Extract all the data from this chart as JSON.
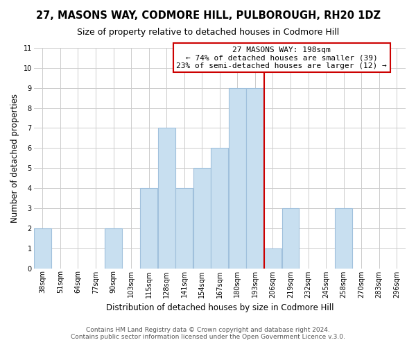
{
  "title": "27, MASONS WAY, CODMORE HILL, PULBOROUGH, RH20 1DZ",
  "subtitle": "Size of property relative to detached houses in Codmore Hill",
  "xlabel": "Distribution of detached houses by size in Codmore Hill",
  "ylabel": "Number of detached properties",
  "bin_labels": [
    "38sqm",
    "51sqm",
    "64sqm",
    "77sqm",
    "90sqm",
    "103sqm",
    "115sqm",
    "128sqm",
    "141sqm",
    "154sqm",
    "167sqm",
    "180sqm",
    "193sqm",
    "206sqm",
    "219sqm",
    "232sqm",
    "245sqm",
    "258sqm",
    "270sqm",
    "283sqm",
    "296sqm"
  ],
  "bar_values": [
    2,
    0,
    0,
    0,
    2,
    0,
    4,
    7,
    4,
    5,
    6,
    9,
    9,
    1,
    3,
    0,
    0,
    3,
    0,
    0,
    0
  ],
  "bar_color": "#c8dff0",
  "bar_edge_color": "#a0c0dc",
  "grid_color": "#cccccc",
  "ref_line_x": 12.5,
  "ref_line_color": "#cc0000",
  "annotation_title": "27 MASONS WAY: 198sqm",
  "annotation_line1": "← 74% of detached houses are smaller (39)",
  "annotation_line2": "23% of semi-detached houses are larger (12) →",
  "annotation_box_color": "#ffffff",
  "annotation_box_edge": "#cc0000",
  "ylim": [
    0,
    11
  ],
  "yticks": [
    0,
    1,
    2,
    3,
    4,
    5,
    6,
    7,
    8,
    9,
    10,
    11
  ],
  "footer_line1": "Contains HM Land Registry data © Crown copyright and database right 2024.",
  "footer_line2": "Contains public sector information licensed under the Open Government Licence v.3.0.",
  "bg_color": "#ffffff",
  "title_fontsize": 10.5,
  "subtitle_fontsize": 9,
  "axis_label_fontsize": 8.5,
  "tick_fontsize": 7,
  "footer_fontsize": 6.5,
  "annotation_fontsize": 8
}
